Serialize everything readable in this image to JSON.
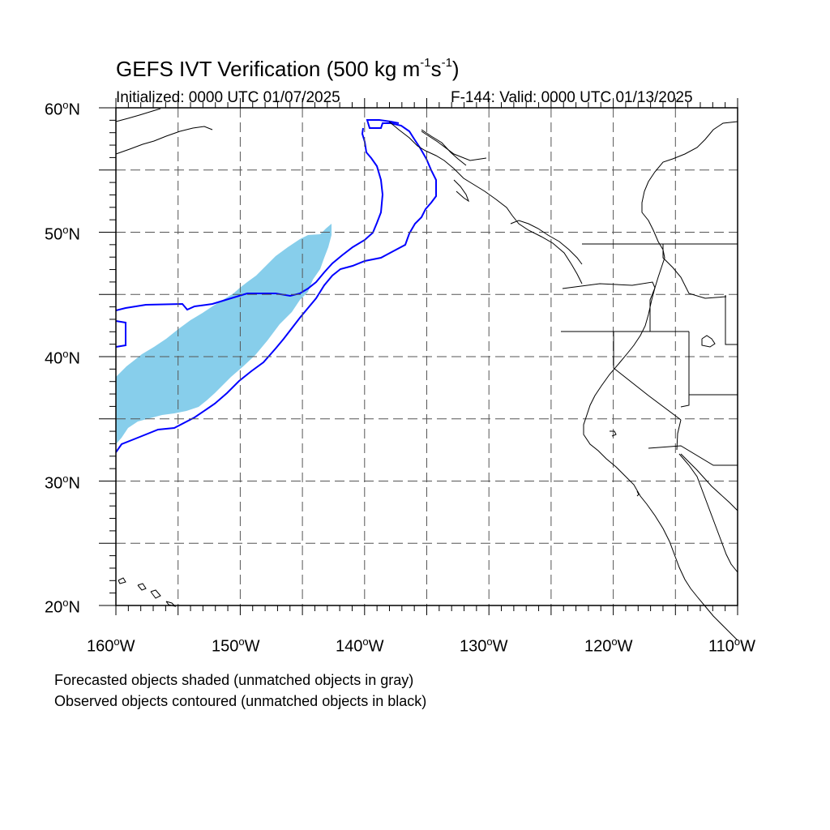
{
  "title": {
    "main": "GEFS IVT Verification (500 kg m",
    "exp1": "-1",
    "mid": "s",
    "exp2": "-1",
    "close": ")"
  },
  "subtitle": {
    "initialized": "Initialized: 0000 UTC 01/07/2025",
    "valid": "F-144: Valid: 0000 UTC 01/13/2025"
  },
  "axes": {
    "lat_labels": [
      "60",
      "50",
      "40",
      "30",
      "20"
    ],
    "lat_suffix": "N",
    "lon_labels": [
      "160",
      "150",
      "140",
      "130",
      "120",
      "110"
    ],
    "lon_suffix": "W",
    "lat_range": [
      20,
      60
    ],
    "lon_range": [
      -160,
      -110
    ],
    "grid_spacing_deg": 5,
    "grid": true
  },
  "notes": [
    "Forecasted objects shaded (unmatched objects in gray)",
    "Observed objects contoured (unmatched objects in black)"
  ],
  "colors": {
    "forecast_fill": "#87ceeb",
    "observed_contour": "#0000ff",
    "coastline": "#000000",
    "grid": "#555555"
  }
}
